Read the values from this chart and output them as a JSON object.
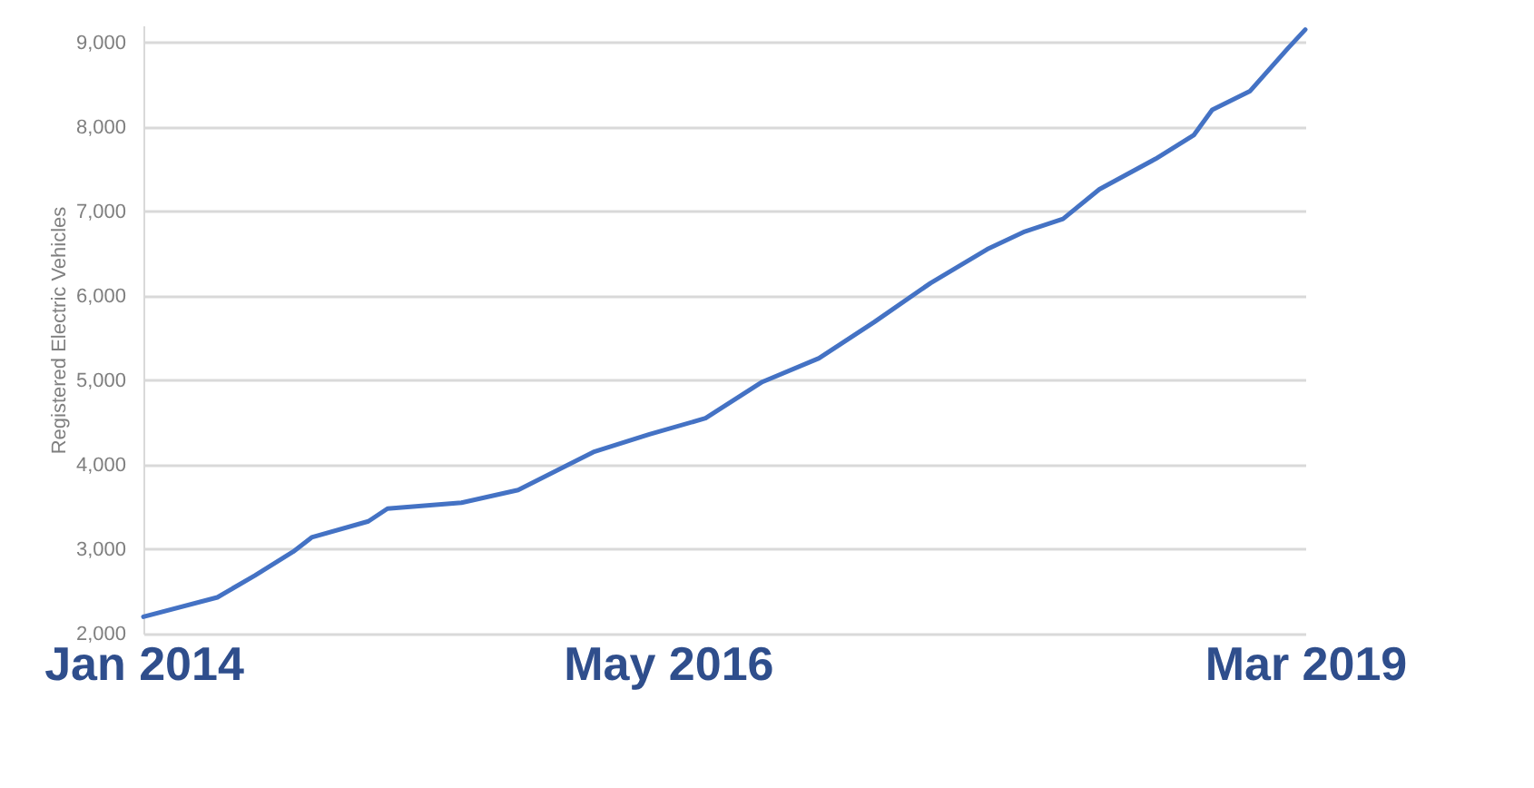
{
  "chart_data": {
    "type": "line",
    "ylabel": "Registered Electric Vehicles",
    "x": [
      "2014-01",
      "2014-05",
      "2014-07",
      "2014-09",
      "2014-10",
      "2015-01",
      "2015-02",
      "2015-06",
      "2015-09",
      "2016-01",
      "2016-04",
      "2016-07",
      "2016-10",
      "2017-01",
      "2017-04",
      "2017-07",
      "2017-10",
      "2017-12",
      "2018-02",
      "2018-04",
      "2018-07",
      "2018-09",
      "2018-10",
      "2018-12",
      "2019-02",
      "2019-03"
    ],
    "series": [
      {
        "color": "#4472c4",
        "values": [
          2200,
          2430,
          2690,
          2970,
          3140,
          3330,
          3480,
          3550,
          3700,
          4150,
          4360,
          4550,
          4980,
          5260,
          5690,
          6150,
          6550,
          6760,
          6910,
          7260,
          7620,
          7900,
          8200,
          8420,
          8930,
          9150
        ]
      }
    ],
    "xlim": [
      "2014-01",
      "2019-03"
    ],
    "xticks": [
      {
        "value": "2014-01",
        "label": "Jan 2014"
      },
      {
        "value": "2016-05",
        "label": "May 2016"
      },
      {
        "value": "2019-03",
        "label": "Mar 2019"
      }
    ],
    "ylim": [
      2000,
      9200
    ],
    "yticks": [
      {
        "value": 2000,
        "label": "2,000"
      },
      {
        "value": 3000,
        "label": "3,000"
      },
      {
        "value": 4000,
        "label": "4,000"
      },
      {
        "value": 5000,
        "label": "5,000"
      },
      {
        "value": 6000,
        "label": "6,000"
      },
      {
        "value": 7000,
        "label": "7,000"
      },
      {
        "value": 8000,
        "label": "8,000"
      },
      {
        "value": 9000,
        "label": "9,000"
      }
    ],
    "grid": "y",
    "marker": "none",
    "line_style": "solid"
  }
}
